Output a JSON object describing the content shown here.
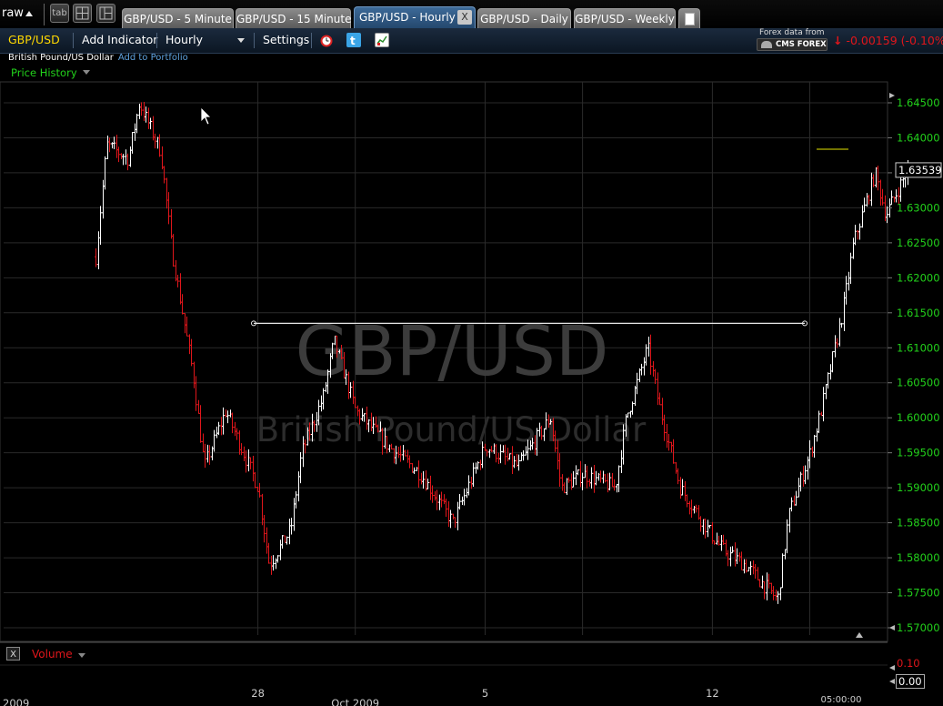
{
  "workspace": {
    "label": "raw"
  },
  "tabs": [
    {
      "label": "GBP/USD - 5 Minute",
      "active": false
    },
    {
      "label": "GBP/USD - 15 Minute",
      "active": false
    },
    {
      "label": "GBP/USD - Hourly",
      "active": true
    },
    {
      "label": "GBP/USD - Daily",
      "active": false
    },
    {
      "label": "GBP/USD - Weekly",
      "active": false
    }
  ],
  "toolbar": {
    "symbol": "GBP/USD",
    "add_indicator": "Add Indicator",
    "interval": "Hourly",
    "settings": "Settings",
    "tab_btn": "tab",
    "close_tab": "X"
  },
  "data_source": {
    "label": "Forex data from",
    "provider": "CMS FOREX"
  },
  "change": {
    "arrow": "↓",
    "value": "-0.00159 (-0.10%)",
    "color": "#e0161b"
  },
  "instrument": {
    "name": "British Pound/US Dollar",
    "add_to_portfolio": "Add to Portfolio"
  },
  "panel": {
    "title": "Price History"
  },
  "watermark": {
    "symbol": "GBP/USD",
    "name": "British Pound/US Dollar"
  },
  "volume": {
    "label": "Volume",
    "upper": "0.10",
    "current": "0.00",
    "close_btn": "X"
  },
  "colors": {
    "up": "#ffffff",
    "down": "#e0161b",
    "axis_label": "#22d11b",
    "grid": "#2a2a2a",
    "trendline": "#e8e8e8",
    "last_marker": "#e6e600"
  },
  "chart_data": {
    "type": "ohlc",
    "title": "GBP/USD",
    "interval": "Hourly",
    "y_ticks": [
      "1.64500",
      "1.64000",
      "1.63500",
      "1.63000",
      "1.62500",
      "1.62000",
      "1.61500",
      "1.61000",
      "1.60500",
      "1.60000",
      "1.59500",
      "1.59000",
      "1.58500",
      "1.58000",
      "1.57500",
      "1.57000"
    ],
    "ylim": [
      1.57,
      1.645
    ],
    "x_ticks": [
      "2009",
      "28",
      "Oct 2009",
      "5",
      "12",
      "05:00:00"
    ],
    "last_price": "1.63539",
    "horizontal_line": {
      "value": 1.6135,
      "from": "Sep 29",
      "to": "Oct 15"
    },
    "path_points": [
      [
        "Sep 23",
        1.623
      ],
      [
        "Sep 23",
        1.639
      ],
      [
        "Sep 24",
        1.637
      ],
      [
        "Sep 24",
        1.645
      ],
      [
        "Sep 25",
        1.638
      ],
      [
        "Sep 25",
        1.624
      ],
      [
        "Sep 26",
        1.606
      ],
      [
        "Sep 26",
        1.593
      ],
      [
        "Sep 27",
        1.601
      ],
      [
        "Sep 28",
        1.59
      ],
      [
        "Sep 28",
        1.579
      ],
      [
        "Sep 29",
        1.584
      ],
      [
        "Sep 29",
        1.595
      ],
      [
        "Sep 30",
        1.603
      ],
      [
        "Sep 30",
        1.611
      ],
      [
        "Oct 1",
        1.601
      ],
      [
        "Oct 2",
        1.596
      ],
      [
        "Oct 3",
        1.592
      ],
      [
        "Oct 4",
        1.585
      ],
      [
        "Oct 5",
        1.596
      ],
      [
        "Oct 6",
        1.593
      ],
      [
        "Oct 7",
        1.6
      ],
      [
        "Oct 7",
        1.59
      ],
      [
        "Oct 8",
        1.592
      ],
      [
        "Oct 9",
        1.59
      ],
      [
        "Oct 9",
        1.6
      ],
      [
        "Oct 10",
        1.61
      ],
      [
        "Oct 10",
        1.602
      ],
      [
        "Oct 11",
        1.59
      ],
      [
        "Oct 12",
        1.583
      ],
      [
        "Oct 12",
        1.581
      ],
      [
        "Oct 13",
        1.579
      ],
      [
        "Oct 14",
        1.574
      ],
      [
        "Oct 14",
        1.586
      ],
      [
        "Oct 15",
        1.595
      ],
      [
        "Oct 15",
        1.601
      ],
      [
        "Oct 16",
        1.615
      ],
      [
        "Oct 16",
        1.625
      ],
      [
        "Oct 17",
        1.635
      ],
      [
        "Oct 17",
        1.629
      ],
      [
        "Oct 18",
        1.6354
      ]
    ]
  }
}
